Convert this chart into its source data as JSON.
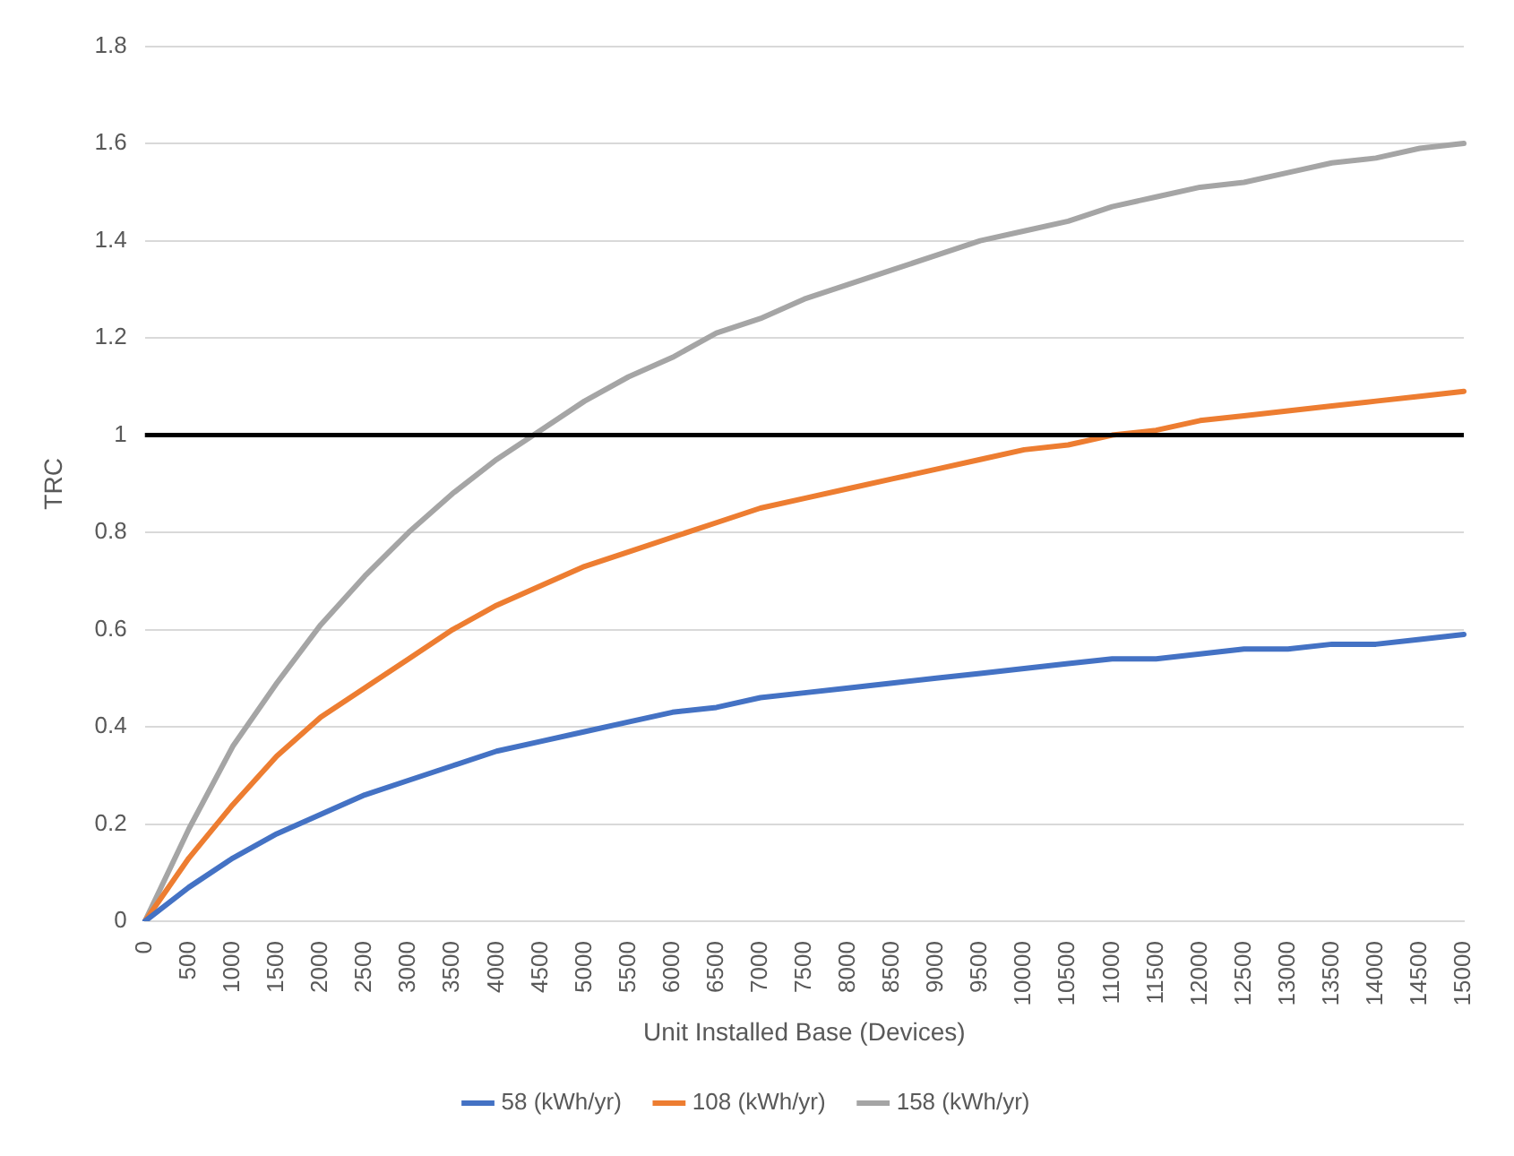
{
  "chart_data": {
    "type": "line",
    "xlabel": "Unit Installed Base (Devices)",
    "ylabel": "TRC",
    "categories": [
      "0",
      "500",
      "1000",
      "1500",
      "2000",
      "2500",
      "3000",
      "3500",
      "4000",
      "4500",
      "5000",
      "5500",
      "6000",
      "6500",
      "7000",
      "7500",
      "8000",
      "8500",
      "9000",
      "9500",
      "10000",
      "10500",
      "11000",
      "11500",
      "12000",
      "12500",
      "13000",
      "13500",
      "14000",
      "14500",
      "15000"
    ],
    "series": [
      {
        "name": "58 (kWh/yr)",
        "color": "#4472c4",
        "values": [
          0,
          0.07,
          0.13,
          0.18,
          0.22,
          0.26,
          0.29,
          0.32,
          0.35,
          0.37,
          0.39,
          0.41,
          0.43,
          0.44,
          0.46,
          0.47,
          0.48,
          0.49,
          0.5,
          0.51,
          0.52,
          0.53,
          0.54,
          0.54,
          0.55,
          0.56,
          0.56,
          0.57,
          0.57,
          0.58,
          0.59
        ]
      },
      {
        "name": "108 (kWh/yr)",
        "color": "#ed7d31",
        "values": [
          0,
          0.13,
          0.24,
          0.34,
          0.42,
          0.48,
          0.54,
          0.6,
          0.65,
          0.69,
          0.73,
          0.76,
          0.79,
          0.82,
          0.85,
          0.87,
          0.89,
          0.91,
          0.93,
          0.95,
          0.97,
          0.98,
          1.0,
          1.01,
          1.03,
          1.04,
          1.05,
          1.06,
          1.07,
          1.08,
          1.09
        ]
      },
      {
        "name": "158 (kWh/yr)",
        "color": "#a5a5a5",
        "values": [
          0,
          0.19,
          0.36,
          0.49,
          0.61,
          0.71,
          0.8,
          0.88,
          0.95,
          1.01,
          1.07,
          1.12,
          1.16,
          1.21,
          1.24,
          1.28,
          1.31,
          1.34,
          1.37,
          1.4,
          1.42,
          1.44,
          1.47,
          1.49,
          1.51,
          1.52,
          1.54,
          1.56,
          1.57,
          1.59,
          1.6
        ]
      }
    ],
    "ylim": [
      0,
      1.8
    ],
    "yticks": [
      0,
      0.2,
      0.4,
      0.6,
      0.8,
      1,
      1.2,
      1.4,
      1.6,
      1.8
    ],
    "ref_lines": [
      {
        "axis": "y",
        "value": 1,
        "color": "#000000"
      }
    ],
    "grid": "y",
    "legend": "bottom",
    "marker": "none",
    "line_style": "solid"
  }
}
